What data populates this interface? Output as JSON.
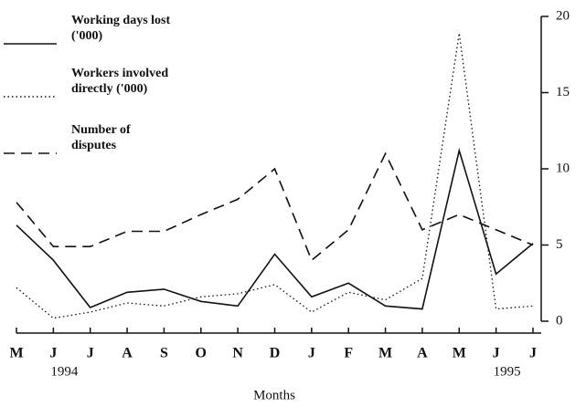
{
  "chart_data": {
    "type": "line",
    "x_label": "Months",
    "categories": [
      "M",
      "J",
      "J",
      "A",
      "S",
      "O",
      "N",
      "D",
      "J",
      "F",
      "M",
      "A",
      "M",
      "J",
      "J"
    ],
    "year_labels": [
      null,
      "1994",
      null,
      null,
      null,
      null,
      null,
      null,
      null,
      null,
      null,
      null,
      null,
      "1995",
      null
    ],
    "series": [
      {
        "name": "Working days lost ('000)",
        "color": "#111111",
        "dash": "solid",
        "values": [
          6.3,
          4.0,
          0.9,
          1.9,
          2.1,
          1.3,
          1.0,
          4.4,
          1.6,
          2.5,
          1.0,
          0.8,
          11.2,
          3.1,
          5.1
        ]
      },
      {
        "name": "Workers involved directly ('000)",
        "color": "#111111",
        "dash": "dotted",
        "values": [
          2.2,
          0.2,
          0.6,
          1.2,
          1.0,
          1.6,
          1.8,
          2.4,
          0.6,
          1.9,
          1.4,
          2.8,
          18.9,
          0.8,
          1.0
        ]
      },
      {
        "name": "Number of disputes",
        "color": "#111111",
        "dash": "dashed",
        "values": [
          7.8,
          4.9,
          4.9,
          5.9,
          5.9,
          7.0,
          8.0,
          10.0,
          4.0,
          6.0,
          11.0,
          6.0,
          7.0,
          6.0,
          5.0
        ]
      }
    ],
    "ylim": [
      0,
      20
    ],
    "yticks": [
      0,
      5,
      10,
      15,
      20
    ],
    "y_axis_side": "right"
  }
}
